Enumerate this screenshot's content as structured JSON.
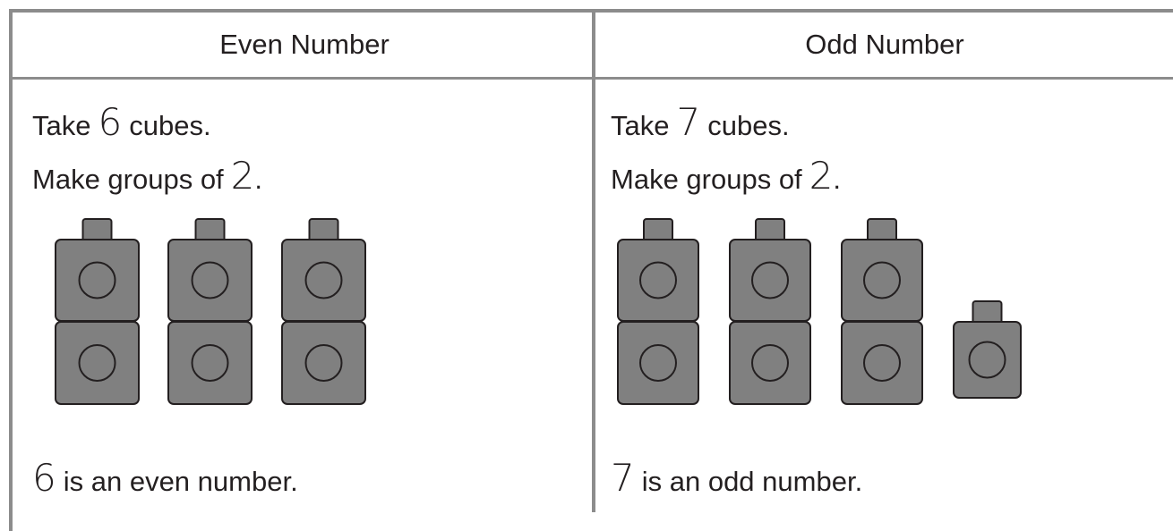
{
  "table": {
    "headers": [
      "Even Number",
      "Odd Number"
    ],
    "columns": [
      {
        "line1": [
          "Take",
          "6",
          "cubes."
        ],
        "line2": [
          "Make groups of",
          "2",
          "."
        ],
        "conclusion": [
          "6",
          "is an even number."
        ]
      },
      {
        "line1": [
          "Take",
          "7",
          "cubes."
        ],
        "line2": [
          "Make groups of",
          "2",
          "."
        ],
        "conclusion": [
          "7",
          "is an odd number."
        ]
      }
    ]
  }
}
